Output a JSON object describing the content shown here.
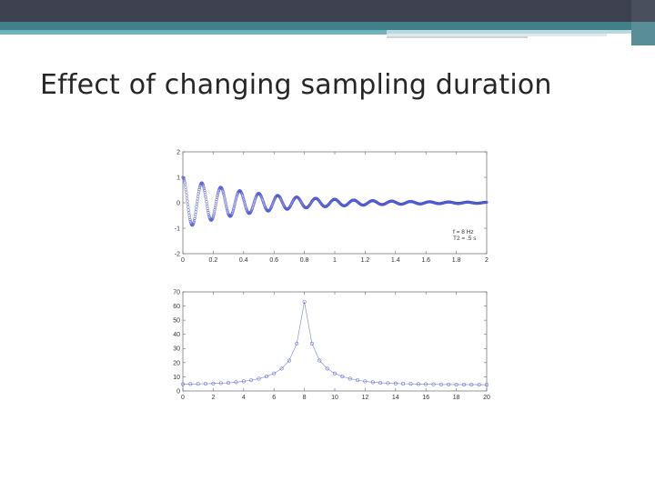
{
  "slide": {
    "title": "Effect of changing sampling duration"
  },
  "colors": {
    "header_dark": "#3d4150",
    "header_teal": "#3f8089",
    "header_light_teal": "#6fb2bd",
    "series": "#4a55cc"
  },
  "chart_data": [
    {
      "type": "scatter",
      "title": "",
      "xlabel": "",
      "ylabel": "",
      "xlim": [
        0,
        2
      ],
      "ylim": [
        -2,
        2
      ],
      "xticks": [
        "0",
        "0.2",
        "0.4",
        "0.6",
        "0.8",
        "1",
        "1.2",
        "1.4",
        "1.6",
        "1.8",
        "2"
      ],
      "yticks": [
        "2",
        "1",
        "0",
        "-1",
        "-2"
      ],
      "signal": {
        "frequency_hz": 8,
        "decay_tau_s": 0.5,
        "amplitude": 1,
        "dt": 0.0025
      },
      "annotation": [
        "f = 8 Hz",
        "T2 = .5 s"
      ],
      "grid": false,
      "series": [
        {
          "marker": "circle",
          "line": false
        }
      ]
    },
    {
      "type": "line",
      "title": "",
      "xlabel": "",
      "ylabel": "",
      "xlim": [
        0,
        20
      ],
      "ylim": [
        0,
        70
      ],
      "xticks": [
        "0",
        "2",
        "4",
        "6",
        "8",
        "10",
        "12",
        "14",
        "16",
        "18",
        "20"
      ],
      "yticks": [
        "70",
        "60",
        "50",
        "40",
        "30",
        "20",
        "10",
        "0"
      ],
      "grid": false,
      "x": [
        0,
        0.5,
        1,
        1.5,
        2,
        2.5,
        3,
        3.5,
        4,
        4.5,
        5,
        5.5,
        6,
        6.5,
        7,
        7.5,
        8,
        8.5,
        9,
        9.5,
        10,
        10.5,
        11,
        11.5,
        12,
        12.5,
        13,
        13.5,
        14,
        14.5,
        15,
        15.5,
        16,
        16.5,
        17,
        17.5,
        18,
        18.5,
        19,
        19.5,
        20
      ],
      "series": [
        {
          "marker": "circle",
          "values": [
            4.8,
            4.9,
            5.0,
            5.1,
            5.3,
            5.5,
            5.8,
            6.2,
            6.8,
            7.6,
            8.7,
            10.2,
            12.4,
            15.8,
            21.5,
            33.5,
            63.0,
            33.5,
            21.5,
            15.8,
            12.4,
            10.2,
            8.7,
            7.6,
            6.8,
            6.2,
            5.8,
            5.5,
            5.3,
            5.1,
            5.0,
            4.9,
            4.8,
            4.7,
            4.6,
            4.6,
            4.5,
            4.5,
            4.5,
            4.4,
            4.4
          ]
        }
      ]
    }
  ]
}
